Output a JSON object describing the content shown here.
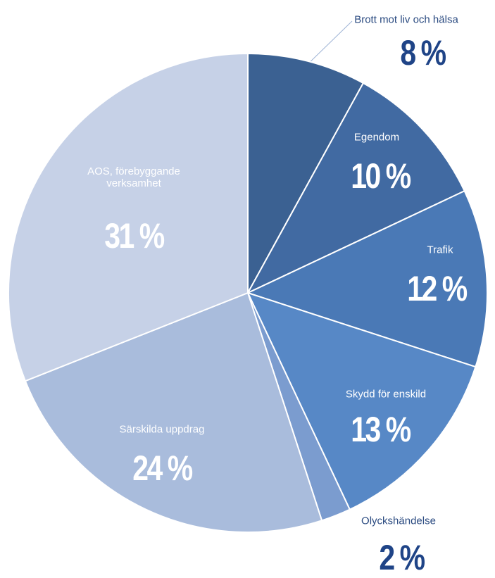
{
  "chart_data": {
    "type": "pie",
    "categories": [
      "Brott mot liv och hälsa",
      "Egendom",
      "Trafik",
      "Skydd för enskild",
      "Olyckshändelse",
      "Särskilda uppdrag",
      "AOS, förebyggande verksamhet"
    ],
    "values": [
      8,
      10,
      12,
      13,
      2,
      24,
      31
    ],
    "value_labels": [
      "8 %",
      "10 %",
      "12 %",
      "13 %",
      "2 %",
      "24 %",
      "31 %"
    ],
    "colors": [
      "#3b6192",
      "#416aa2",
      "#4a79b6",
      "#5788c6",
      "#7b9ccf",
      "#a9bcdc",
      "#c6d1e7"
    ]
  }
}
